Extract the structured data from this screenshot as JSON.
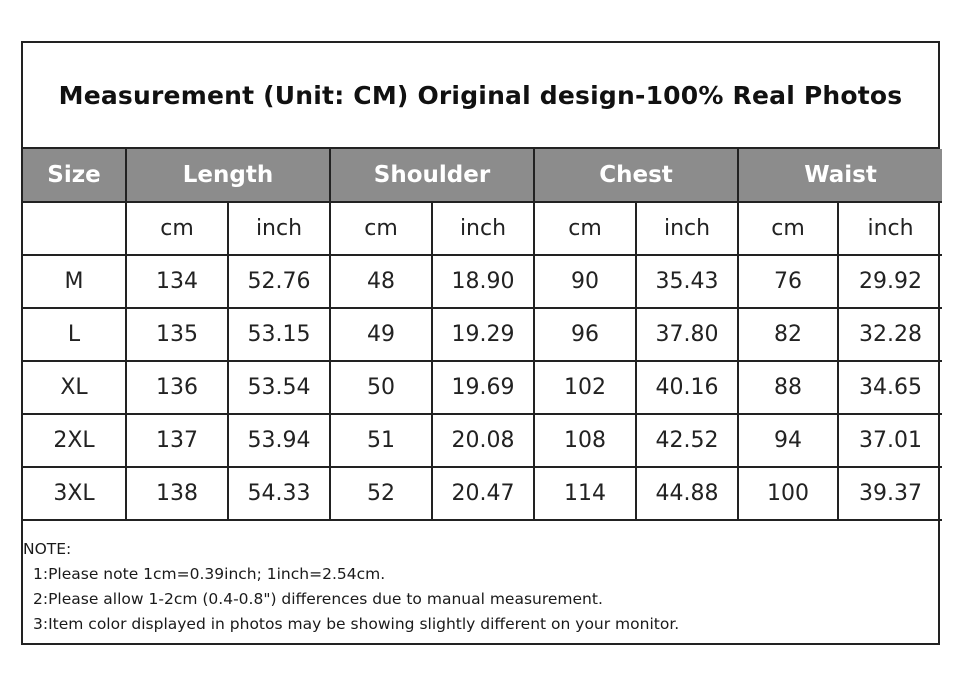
{
  "title": "Measurement (Unit: CM) Original design-100% Real Photos",
  "headers": {
    "size": "Size",
    "length": "Length",
    "shoulder": "Shoulder",
    "chest": "Chest",
    "waist": "Waist"
  },
  "units": [
    "cm",
    "inch",
    "cm",
    "inch",
    "cm",
    "inch",
    "cm",
    "inch"
  ],
  "rows": [
    {
      "size": "M",
      "values": [
        "134",
        "52.76",
        "48",
        "18.90",
        "90",
        "35.43",
        "76",
        "29.92"
      ]
    },
    {
      "size": "L",
      "values": [
        "135",
        "53.15",
        "49",
        "19.29",
        "96",
        "37.80",
        "82",
        "32.28"
      ]
    },
    {
      "size": "XL",
      "values": [
        "136",
        "53.54",
        "50",
        "19.69",
        "102",
        "40.16",
        "88",
        "34.65"
      ]
    },
    {
      "size": "2XL",
      "values": [
        "137",
        "53.94",
        "51",
        "20.08",
        "108",
        "42.52",
        "94",
        "37.01"
      ]
    },
    {
      "size": "3XL",
      "values": [
        "138",
        "54.33",
        "52",
        "20.47",
        "114",
        "44.88",
        "100",
        "39.37"
      ]
    }
  ],
  "notes": {
    "title": "NOTE:",
    "lines": [
      "1:Please note 1cm=0.39inch; 1inch=2.54cm.",
      "2:Please allow 1-2cm (0.4-0.8\") differences due to manual measurement.",
      "3:Item color displayed in photos may be showing slightly different on your monitor."
    ]
  },
  "colors": {
    "header_bg": "#8c8c8c",
    "header_text": "#ffffff",
    "border": "#222222"
  }
}
